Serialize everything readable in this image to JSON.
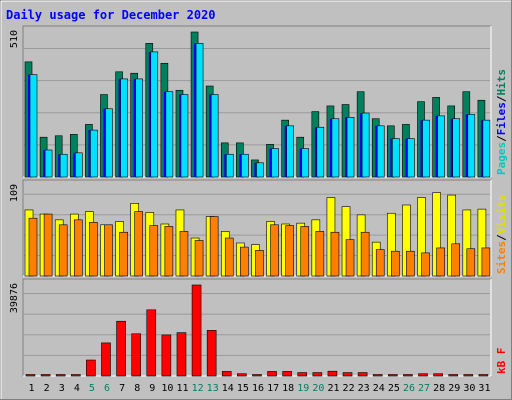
{
  "chart_data": {
    "type": "bar",
    "title": "Daily usage for December 2020",
    "categories": [
      "1",
      "2",
      "3",
      "4",
      "5",
      "6",
      "7",
      "8",
      "9",
      "10",
      "11",
      "12",
      "13",
      "14",
      "15",
      "16",
      "17",
      "18",
      "19",
      "20",
      "21",
      "22",
      "23",
      "24",
      "25",
      "26",
      "27",
      "28",
      "29",
      "30",
      "31"
    ],
    "weekend_days": [
      "5",
      "6",
      "12",
      "13",
      "19",
      "20",
      "26",
      "27"
    ],
    "grid": true,
    "panels": [
      {
        "id": "top",
        "max_label": "510",
        "ylim": [
          0,
          510
        ],
        "legend_words": [
          "Pages",
          "Files",
          "Hits"
        ],
        "series": [
          {
            "name": "Hits",
            "color": "#00805c",
            "values": [
              405,
              140,
              145,
              150,
              185,
              290,
              370,
              365,
              470,
              400,
              305,
              510,
              320,
              120,
              120,
              60,
              115,
              200,
              140,
              230,
              250,
              255,
              300,
              205,
              180,
              185,
              265,
              280,
              250,
              300,
              270
            ]
          },
          {
            "name": "Files",
            "color": "#0000ff",
            "values": [
              360,
              95,
              80,
              85,
              165,
              240,
              345,
              345,
              440,
              300,
              290,
              470,
              290,
              80,
              80,
              50,
              100,
              180,
              100,
              175,
              205,
              210,
              225,
              180,
              135,
              135,
              200,
              215,
              205,
              220,
              200
            ]
          },
          {
            "name": "Pages",
            "color": "#00e0ff",
            "values": [
              360,
              95,
              80,
              85,
              165,
              240,
              345,
              345,
              440,
              300,
              290,
              470,
              290,
              80,
              80,
              50,
              100,
              180,
              100,
              175,
              205,
              210,
              225,
              180,
              135,
              135,
              200,
              215,
              205,
              220,
              200
            ]
          }
        ]
      },
      {
        "id": "mid",
        "max_label": "109",
        "ylim": [
          0,
          109
        ],
        "legend_words": [
          "Sites",
          "Visits"
        ],
        "series": [
          {
            "name": "Visits",
            "color": "#ffff00",
            "values": [
              80,
              75,
              68,
              75,
              78,
              62,
              66,
              88,
              77,
              63,
              80,
              46,
              72,
              54,
              40,
              38,
              66,
              63,
              64,
              68,
              95,
              84,
              74,
              41,
              76,
              86,
              95,
              101,
              98,
              80,
              81
            ]
          },
          {
            "name": "Sites",
            "color": "#ff8000",
            "values": [
              70,
              75,
              62,
              68,
              65,
              62,
              53,
              78,
              61,
              60,
              54,
              43,
              72,
              46,
              35,
              31,
              62,
              61,
              60,
              54,
              53,
              44,
              53,
              32,
              30,
              30,
              28,
              34,
              39,
              33,
              34
            ]
          }
        ]
      },
      {
        "id": "bot",
        "max_label": "39876",
        "ylim": [
          0,
          39876
        ],
        "legend_words": [
          "kB F"
        ],
        "series": [
          {
            "name": "kB F",
            "color": "#ff0000",
            "values": [
              450,
              450,
              450,
              450,
              7000,
              14500,
              24000,
              18500,
              29000,
              18000,
              19000,
              39876,
              20000,
              2000,
              1000,
              600,
              2000,
              2000,
              1500,
              1500,
              2100,
              1500,
              1500,
              500,
              500,
              500,
              1000,
              1000,
              600,
              600,
              500
            ]
          }
        ]
      }
    ]
  }
}
